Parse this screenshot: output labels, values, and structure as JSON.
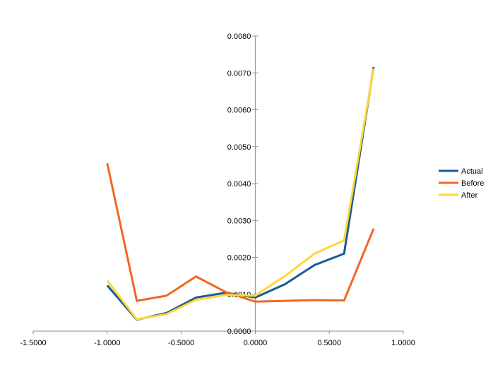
{
  "chart_data": {
    "type": "line",
    "title": "",
    "xlabel": "",
    "ylabel": "",
    "xlim": [
      -1.5,
      1.0
    ],
    "ylim": [
      0,
      0.008
    ],
    "x_ticks": [
      "-1.5000",
      "-1.0000",
      "-0.5000",
      "0.0000",
      "0.5000",
      "1.0000"
    ],
    "y_ticks": [
      "0.0000",
      "0.0010",
      "0.0020",
      "0.0030",
      "0.0040",
      "0.0050",
      "0.0060",
      "0.0070",
      "0.0080"
    ],
    "x_tick_values": [
      -1.5,
      -1.0,
      -0.5,
      0.0,
      0.5,
      1.0
    ],
    "y_tick_values": [
      0,
      0.001,
      0.002,
      0.003,
      0.004,
      0.005,
      0.006,
      0.007,
      0.008
    ],
    "grid": false,
    "legend_position": "right",
    "x": [
      -1.0,
      -0.8,
      -0.6,
      -0.4,
      -0.2,
      0.0,
      0.2,
      0.4,
      0.6,
      0.8
    ],
    "series": [
      {
        "name": "Actual",
        "color": "#1a5a96",
        "values": [
          0.00124,
          0.00031,
          0.00049,
          0.00091,
          0.00104,
          0.00091,
          0.00127,
          0.00179,
          0.0021,
          0.00716
        ]
      },
      {
        "name": "Before",
        "color": "#f26722",
        "values": [
          0.00455,
          0.00082,
          0.00096,
          0.00148,
          0.00106,
          0.0008,
          0.00082,
          0.00084,
          0.00083,
          0.00278
        ]
      },
      {
        "name": "After",
        "color": "#fdd835",
        "values": [
          0.00137,
          0.00032,
          0.00046,
          0.00085,
          0.00098,
          0.00096,
          0.00149,
          0.0021,
          0.00246,
          0.00712
        ]
      }
    ]
  }
}
